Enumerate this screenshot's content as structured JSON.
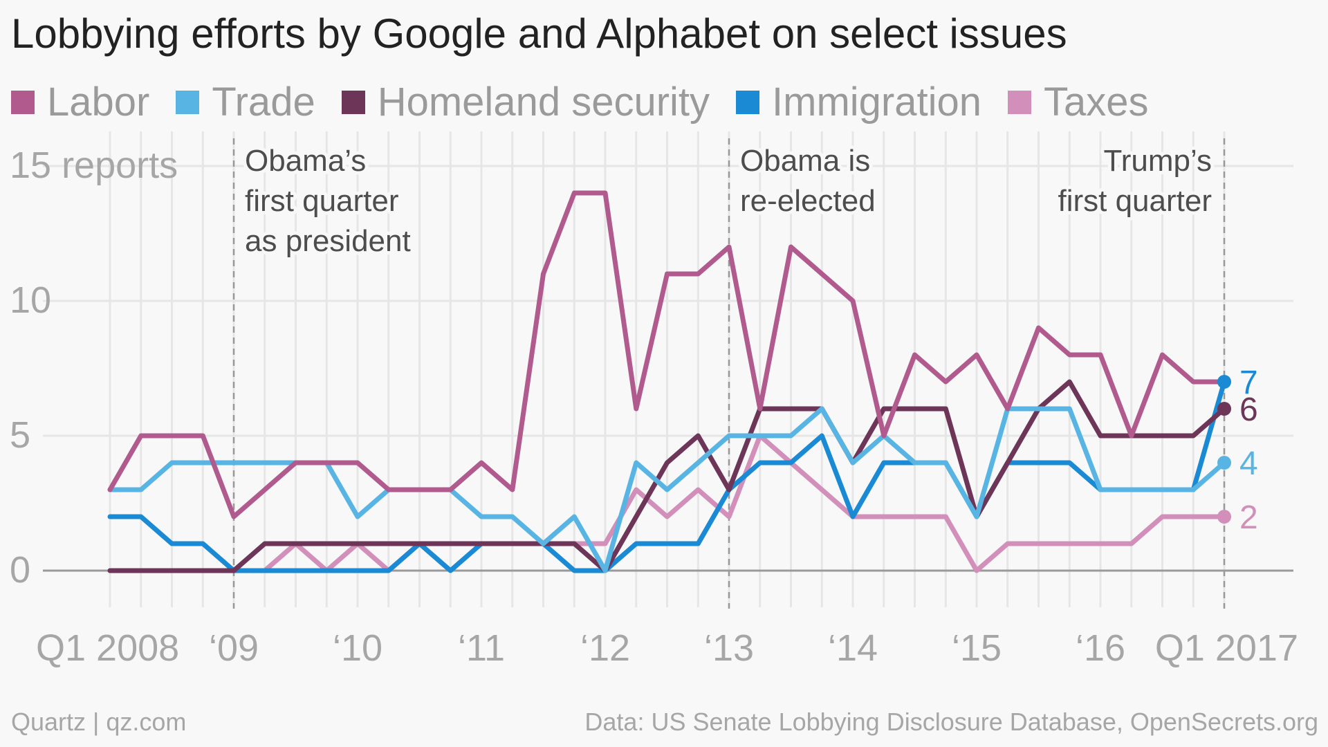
{
  "header": {
    "title": "Lobbying efforts by Google and Alphabet on select issues"
  },
  "footer": {
    "credit": "Quartz | qz.com",
    "source": "Data: US Senate Lobbying Disclosure Database, OpenSecrets.org"
  },
  "chart_data": {
    "type": "line",
    "title": "Lobbying efforts by Google and Alphabet on select issues",
    "xlabel": "",
    "ylabel": "",
    "y_unit_label": "15 reports",
    "ylim": [
      0,
      15
    ],
    "y_ticks": [
      0,
      5,
      10,
      15
    ],
    "y_tick_labels": [
      "0",
      "5",
      "10",
      "15 reports"
    ],
    "x": [
      "2008 Q1",
      "2008 Q2",
      "2008 Q3",
      "2008 Q4",
      "2009 Q1",
      "2009 Q2",
      "2009 Q3",
      "2009 Q4",
      "2010 Q1",
      "2010 Q2",
      "2010 Q3",
      "2010 Q4",
      "2011 Q1",
      "2011 Q2",
      "2011 Q3",
      "2011 Q4",
      "2012 Q1",
      "2012 Q2",
      "2012 Q3",
      "2012 Q4",
      "2013 Q1",
      "2013 Q2",
      "2013 Q3",
      "2013 Q4",
      "2014 Q1",
      "2014 Q2",
      "2014 Q3",
      "2014 Q4",
      "2015 Q1",
      "2015 Q2",
      "2015 Q3",
      "2015 Q4",
      "2016 Q1",
      "2016 Q2",
      "2016 Q3",
      "2016 Q4",
      "2017 Q1"
    ],
    "x_tick_labels": [
      {
        "at": "2008 Q1",
        "label": "Q1 2008"
      },
      {
        "at": "2009 Q1",
        "label": "‘09"
      },
      {
        "at": "2010 Q1",
        "label": "‘10"
      },
      {
        "at": "2011 Q1",
        "label": "‘11"
      },
      {
        "at": "2012 Q1",
        "label": "‘12"
      },
      {
        "at": "2013 Q1",
        "label": "‘13"
      },
      {
        "at": "2014 Q1",
        "label": "‘14"
      },
      {
        "at": "2015 Q1",
        "label": "‘15"
      },
      {
        "at": "2016 Q1",
        "label": "‘16"
      },
      {
        "at": "2017 Q1",
        "label": "Q1 2017"
      }
    ],
    "grid": true,
    "legend_position": "top",
    "series": [
      {
        "name": "Labor",
        "color": "#b05a8e",
        "values": [
          3,
          5,
          5,
          5,
          2,
          3,
          4,
          4,
          4,
          3,
          3,
          3,
          4,
          3,
          11,
          14,
          14,
          6,
          11,
          11,
          12,
          6,
          12,
          11,
          10,
          5,
          8,
          7,
          8,
          6,
          9,
          8,
          8,
          5,
          8,
          7,
          7
        ]
      },
      {
        "name": "Trade",
        "color": "#58b5e3",
        "values": [
          3,
          3,
          4,
          4,
          4,
          4,
          4,
          4,
          2,
          3,
          3,
          3,
          2,
          2,
          1,
          2,
          0,
          4,
          3,
          4,
          5,
          5,
          5,
          6,
          4,
          5,
          4,
          4,
          2,
          6,
          6,
          6,
          3,
          3,
          3,
          3,
          4
        ]
      },
      {
        "name": "Homeland security",
        "color": "#6d3558",
        "values": [
          0,
          0,
          0,
          0,
          0,
          1,
          1,
          1,
          1,
          1,
          1,
          1,
          1,
          1,
          1,
          1,
          0,
          2,
          4,
          5,
          3,
          6,
          6,
          6,
          4,
          6,
          6,
          6,
          2,
          4,
          6,
          7,
          5,
          5,
          5,
          5,
          6
        ]
      },
      {
        "name": "Immigration",
        "color": "#1a8ad5",
        "values": [
          2,
          2,
          1,
          1,
          0,
          0,
          0,
          0,
          0,
          0,
          1,
          0,
          1,
          1,
          1,
          0,
          0,
          1,
          1,
          1,
          3,
          4,
          4,
          5,
          2,
          4,
          4,
          4,
          2,
          4,
          4,
          4,
          3,
          3,
          3,
          3,
          7
        ]
      },
      {
        "name": "Taxes",
        "color": "#d18fba",
        "values": [
          0,
          0,
          0,
          0,
          0,
          0,
          1,
          0,
          1,
          0,
          1,
          1,
          1,
          1,
          1,
          1,
          1,
          3,
          2,
          3,
          2,
          5,
          4,
          3,
          2,
          2,
          2,
          2,
          0,
          1,
          1,
          1,
          1,
          1,
          2,
          2,
          2
        ]
      }
    ],
    "end_labels": [
      {
        "series": "Immigration",
        "label": "7"
      },
      {
        "series": "Homeland security",
        "label": "6"
      },
      {
        "series": "Trade",
        "label": "4"
      },
      {
        "series": "Taxes",
        "label": "2"
      }
    ],
    "annotations": [
      {
        "at": "2009 Q1",
        "lines": [
          "Obama’s",
          "first quarter",
          "as president"
        ],
        "align": "start"
      },
      {
        "at": "2013 Q1",
        "lines": [
          "Obama is",
          "re-elected"
        ],
        "align": "start"
      },
      {
        "at": "2017 Q1",
        "lines": [
          "Trump’s",
          "first quarter"
        ],
        "align": "end"
      }
    ]
  }
}
